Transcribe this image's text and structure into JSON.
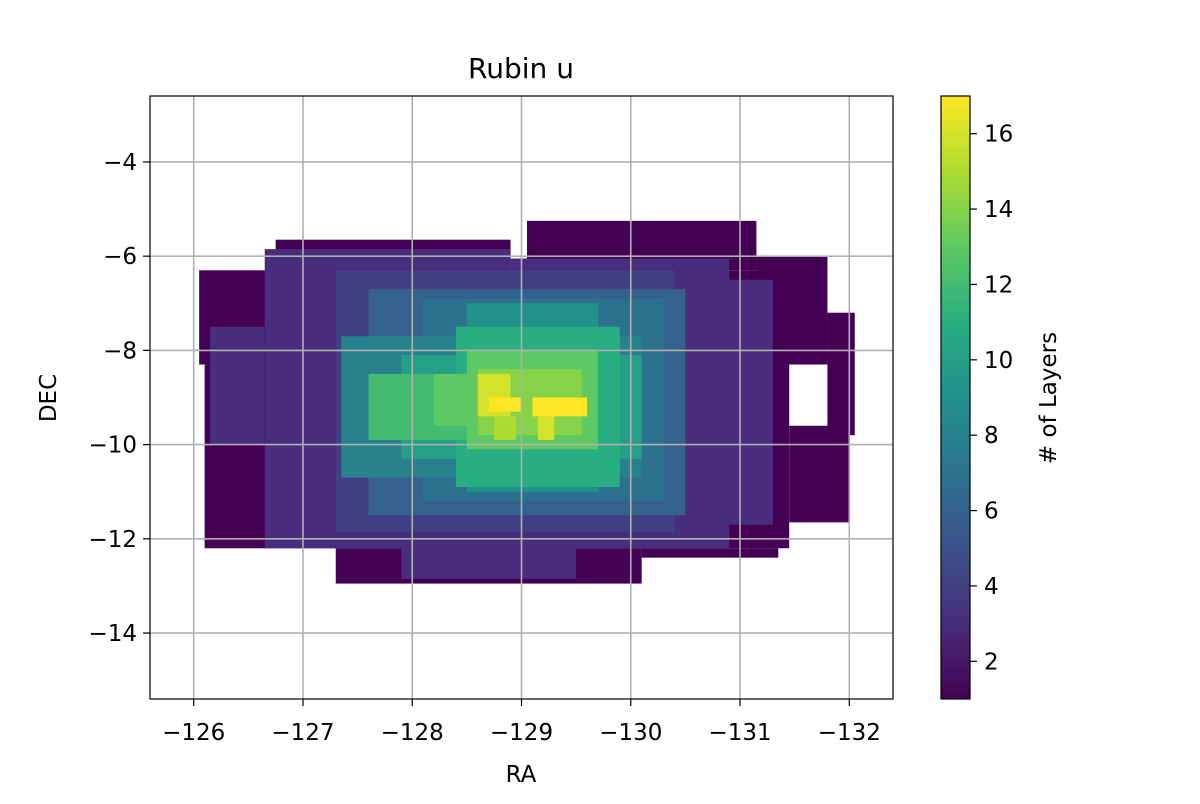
{
  "chart_data": {
    "type": "heatmap",
    "title": "Rubin u",
    "xlabel": "RA",
    "ylabel": "DEC",
    "xlim": [
      -125.6,
      -132.4
    ],
    "ylim": [
      -15.4,
      -2.6
    ],
    "x_inverted": true,
    "xticks": [
      -126,
      -127,
      -128,
      -129,
      -130,
      -131,
      -132
    ],
    "xtick_labels": [
      "−126",
      "−127",
      "−128",
      "−129",
      "−130",
      "−131",
      "−132"
    ],
    "yticks": [
      -4,
      -6,
      -8,
      -10,
      -12,
      -14
    ],
    "ytick_labels": [
      "−4",
      "−6",
      "−8",
      "−10",
      "−12",
      "−14"
    ],
    "grid": true,
    "colormap": "viridis",
    "colorbar": {
      "label": "# of Layers",
      "vmin": 1,
      "vmax": 17,
      "ticks": [
        2,
        4,
        6,
        8,
        10,
        12,
        14,
        16
      ],
      "tick_labels": [
        "2",
        "4",
        "6",
        "8",
        "10",
        "12",
        "14",
        "16"
      ]
    },
    "regions": [
      {
        "ra": [
          -126.05,
          -131.6
        ],
        "dec": [
          -6.3,
          -8.3
        ],
        "layers": 1
      },
      {
        "ra": [
          -126.75,
          -128.9
        ],
        "dec": [
          -5.65,
          -6.3
        ],
        "layers": 1
      },
      {
        "ra": [
          -129.05,
          -131.15
        ],
        "dec": [
          -5.25,
          -6.3
        ],
        "layers": 1
      },
      {
        "ra": [
          -131.15,
          -131.8
        ],
        "dec": [
          -6.0,
          -8.3
        ],
        "layers": 1
      },
      {
        "ra": [
          -131.8,
          -132.05
        ],
        "dec": [
          -7.2,
          -9.8
        ],
        "layers": 1
      },
      {
        "ra": [
          -126.1,
          -131.45
        ],
        "dec": [
          -8.3,
          -12.2
        ],
        "layers": 1
      },
      {
        "ra": [
          -131.45,
          -132.0
        ],
        "dec": [
          -9.6,
          -11.65
        ],
        "layers": 1
      },
      {
        "ra": [
          -127.3,
          -130.1
        ],
        "dec": [
          -12.2,
          -12.95
        ],
        "layers": 1
      },
      {
        "ra": [
          -130.1,
          -131.35
        ],
        "dec": [
          -12.2,
          -12.4
        ],
        "layers": 1
      },
      {
        "ra": [
          -126.65,
          -128.9
        ],
        "dec": [
          -5.85,
          -12.2
        ],
        "layers": 3
      },
      {
        "ra": [
          -128.9,
          -130.9
        ],
        "dec": [
          -6.05,
          -12.2
        ],
        "layers": 3
      },
      {
        "ra": [
          -126.15,
          -126.65
        ],
        "dec": [
          -7.5,
          -10.0
        ],
        "layers": 3
      },
      {
        "ra": [
          -130.9,
          -131.3
        ],
        "dec": [
          -6.5,
          -11.7
        ],
        "layers": 3
      },
      {
        "ra": [
          -127.9,
          -129.5
        ],
        "dec": [
          -12.2,
          -12.85
        ],
        "layers": 3
      },
      {
        "ra": [
          -127.3,
          -130.4
        ],
        "dec": [
          -6.3,
          -11.85
        ],
        "layers": 4
      },
      {
        "ra": [
          -127.6,
          -130.5
        ],
        "dec": [
          -6.7,
          -11.5
        ],
        "layers": 6
      },
      {
        "ra": [
          -128.1,
          -130.3
        ],
        "dec": [
          -6.9,
          -11.2
        ],
        "layers": 7
      },
      {
        "ra": [
          -127.35,
          -130.1
        ],
        "dec": [
          -7.7,
          -10.7
        ],
        "layers": 8
      },
      {
        "ra": [
          -128.5,
          -129.7
        ],
        "dec": [
          -7.0,
          -11.0
        ],
        "layers": 9
      },
      {
        "ra": [
          -127.9,
          -130.1
        ],
        "dec": [
          -8.1,
          -10.3
        ],
        "layers": 10
      },
      {
        "ra": [
          -128.4,
          -129.9
        ],
        "dec": [
          -7.5,
          -10.9
        ],
        "layers": 11
      },
      {
        "ra": [
          -127.6,
          -129.6
        ],
        "dec": [
          -8.5,
          -9.9
        ],
        "layers": 12
      },
      {
        "ra": [
          -128.5,
          -129.7
        ],
        "dec": [
          -8.0,
          -10.1
        ],
        "layers": 13
      },
      {
        "ra": [
          -128.2,
          -128.5
        ],
        "dec": [
          -8.5,
          -9.6
        ],
        "layers": 13
      },
      {
        "ra": [
          -128.6,
          -129.55
        ],
        "dec": [
          -8.4,
          -9.8
        ],
        "layers": 14
      },
      {
        "ra": [
          -128.6,
          -128.9
        ],
        "dec": [
          -8.5,
          -9.4
        ],
        "layers": 16
      },
      {
        "ra": [
          -128.7,
          -129.0
        ],
        "dec": [
          -9.0,
          -9.3
        ],
        "layers": 17
      },
      {
        "ra": [
          -129.1,
          -129.6
        ],
        "dec": [
          -9.0,
          -9.4
        ],
        "layers": 17
      },
      {
        "ra": [
          -129.15,
          -129.3
        ],
        "dec": [
          -9.4,
          -9.9
        ],
        "layers": 16
      },
      {
        "ra": [
          -128.75,
          -128.95
        ],
        "dec": [
          -9.4,
          -9.9
        ],
        "layers": 15
      }
    ]
  }
}
